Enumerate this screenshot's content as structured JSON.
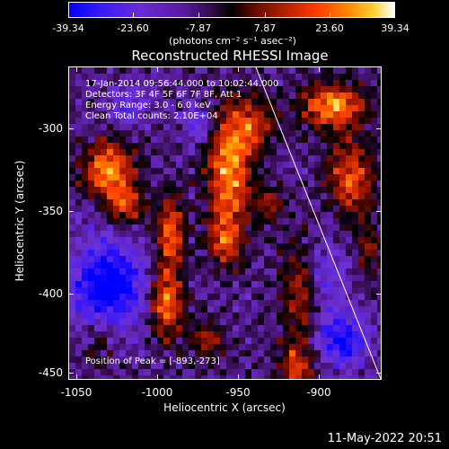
{
  "colorbar": {
    "ticks": [
      "-39.34",
      "-23.60",
      "-7.87",
      "7.87",
      "23.60",
      "39.34"
    ],
    "units": "(photons cm⁻² s⁻¹ asec⁻²)"
  },
  "plot": {
    "title": "Reconstructed RHESSI Image",
    "info_lines": [
      "17-Jan-2014 09:56:44.000 to 10:02:44.000",
      "Detectors: 3F 4F 5F 6F 7F 8F, Att 1",
      "Energy Range: 3.0 - 6.0 keV",
      "Clean     Total counts: 2.10E+04"
    ],
    "peak_label": "Position of Peak = [-893,-273]",
    "xlabel": "Heliocentric X (arcsec)",
    "ylabel": "Heliocentric Y (arcsec)",
    "xticks": [
      "-1050",
      "-1000",
      "-950",
      "-900"
    ],
    "yticks": [
      "-300",
      "-350",
      "-400",
      "-450"
    ]
  },
  "timestamp": "11-May-2022 20:51"
}
